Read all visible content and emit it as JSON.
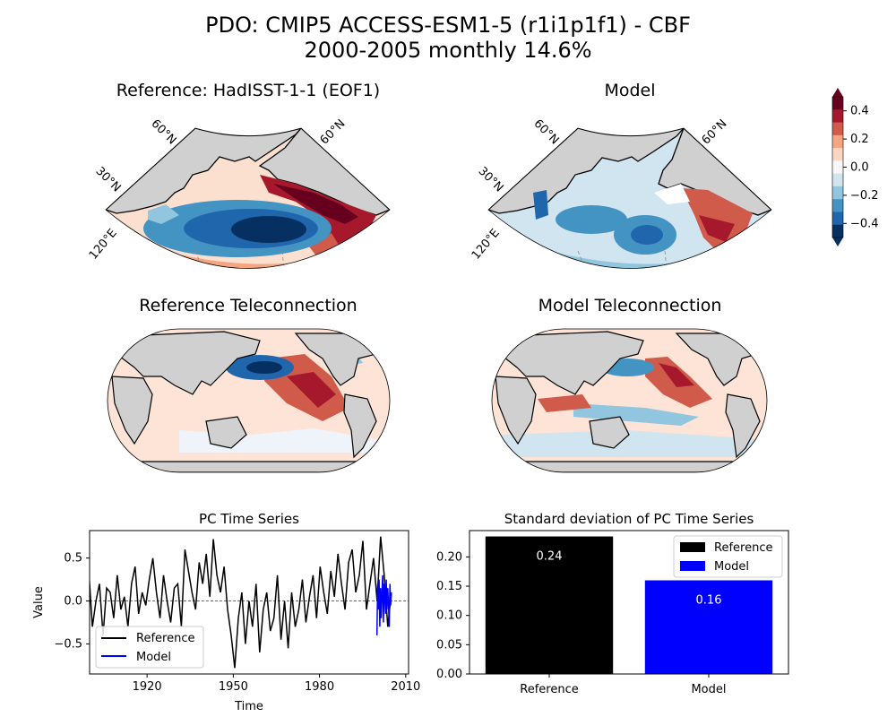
{
  "figure": {
    "title_line1": "PDO: CMIP5 ACCESS-ESM1-5 (r1i1p1f1) - CBF",
    "title_line2": "2000-2005 monthly 14.6%"
  },
  "maps": {
    "ref_eof_title": "Reference: HadISST-1-1 (EOF1)",
    "model_eof_title": "Model",
    "ref_tele_title": "Reference Teleconnection",
    "model_tele_title": "Model Teleconnection",
    "lat_labels": [
      "60°N",
      "30°N"
    ],
    "lat_label_right": "60°N",
    "lon_label": "120°E",
    "land_color": "#d0d0d0"
  },
  "colorbar": {
    "ticks": [
      "0.4",
      "0.2",
      "0.0",
      "−0.2",
      "−0.4"
    ],
    "colors": [
      "#67001f",
      "#a6192c",
      "#d05b4b",
      "#f4a582",
      "#fbd7c3",
      "#f7f7f7",
      "#d1e5f0",
      "#92c5de",
      "#4393c3",
      "#2066ac",
      "#053061"
    ]
  },
  "chart_data": [
    {
      "type": "line",
      "title": "PC Time Series",
      "xlabel": "Time",
      "ylabel": "Value",
      "xlim": [
        1900,
        2011
      ],
      "ylim": [
        -0.85,
        0.82
      ],
      "xticks": [
        1920,
        1950,
        1980,
        2010
      ],
      "yticks": [
        -0.5,
        0.0,
        0.5
      ],
      "ytick_labels": [
        "−0.5",
        "0.0",
        "0.5"
      ],
      "zero_line": true,
      "legend_position": "lower-left",
      "series": [
        {
          "name": "Reference",
          "color": "#000000",
          "x_start": 1870,
          "x_end": 2005,
          "values": [
            0.05,
            0.2,
            0.1,
            0.3,
            -0.1,
            0.2,
            -0.05,
            0.25,
            0.4,
            0.1,
            0.6,
            -0.1,
            0.25,
            0.05,
            -0.3,
            0.15,
            0.3,
            -0.2,
            0.1,
            0.45,
            -0.15,
            0.2,
            -0.25,
            0.1,
            0.35,
            -0.3,
            0.0,
            0.2,
            -0.4,
            0.15,
            0.1,
            -0.2,
            0.3,
            -0.1,
            0.05,
            -0.3,
            0.2,
            0.4,
            -0.15,
            0.1,
            -0.05,
            0.25,
            0.5,
            0.1,
            -0.2,
            0.3,
            0.0,
            -0.25,
            0.15,
            0.2,
            -0.3,
            0.6,
            0.35,
            0.1,
            -0.1,
            0.45,
            0.2,
            0.55,
            0.05,
            0.72,
            0.3,
            0.1,
            0.4,
            -0.1,
            -0.4,
            -0.78,
            -0.2,
            0.1,
            -0.5,
            0.0,
            -0.3,
            0.2,
            -0.6,
            -0.1,
            0.1,
            -0.35,
            -0.2,
            0.3,
            -0.45,
            0.0,
            -0.55,
            0.1,
            -0.3,
            -0.1,
            0.25,
            -0.25,
            0.05,
            0.3,
            -0.2,
            0.4,
            0.1,
            -0.15,
            0.35,
            0.05,
            0.55,
            0.2,
            -0.1,
            0.45,
            0.6,
            0.1,
            0.3,
            0.7,
            -0.1,
            0.2,
            0.5,
            0.0,
            0.75,
            0.3,
            -0.3,
            0.1
          ]
        },
        {
          "name": "Model",
          "color": "#0000ff",
          "x_start": 2000,
          "x_end": 2005,
          "values": [
            -0.4,
            0.2,
            -0.1,
            0.25,
            -0.3,
            0.15,
            -0.2,
            0.1,
            0.3,
            -0.25,
            0.2,
            0.05,
            -0.15,
            0.25,
            -0.1,
            0.15,
            0.0,
            -0.3,
            0.2,
            -0.05,
            0.1
          ]
        }
      ]
    },
    {
      "type": "bar",
      "title": "Standard deviation of PC Time Series",
      "categories": [
        "Reference",
        "Model"
      ],
      "values": [
        0.235,
        0.16
      ],
      "value_labels": [
        "0.24",
        "0.16"
      ],
      "colors": [
        "#000000",
        "#0000ff"
      ],
      "ylim": [
        0,
        0.245
      ],
      "yticks": [
        0.0,
        0.05,
        0.1,
        0.15,
        0.2
      ],
      "ytick_labels": [
        "0.00",
        "0.05",
        "0.10",
        "0.15",
        "0.20"
      ],
      "legend": [
        "Reference",
        "Model"
      ],
      "legend_position": "top-right"
    }
  ]
}
